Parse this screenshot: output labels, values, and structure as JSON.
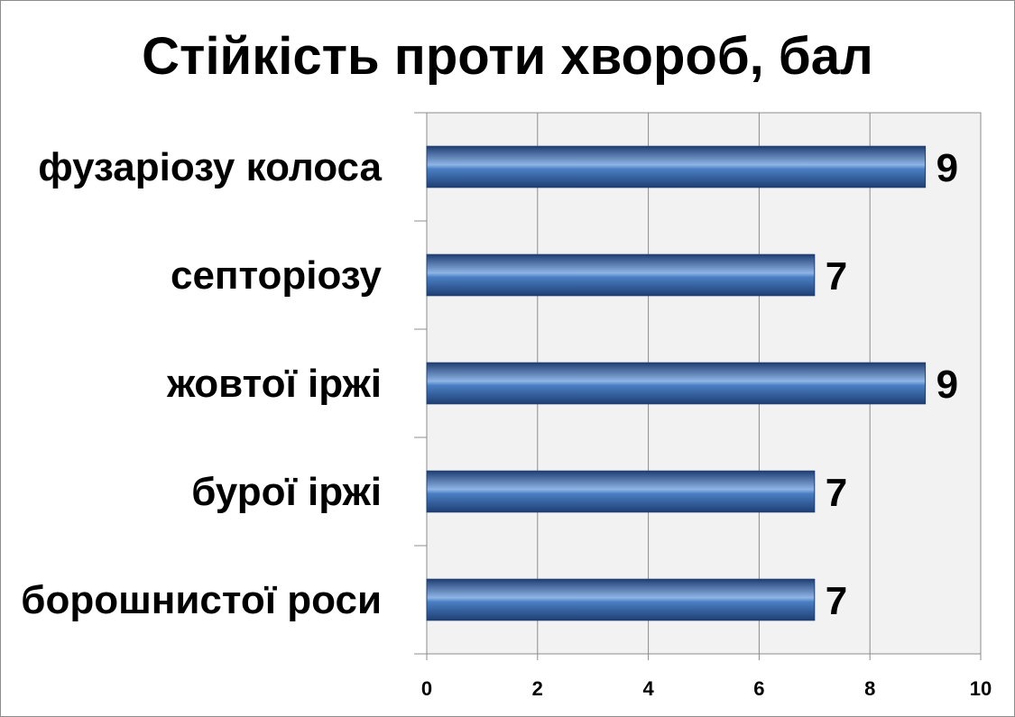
{
  "chart_data": {
    "type": "bar",
    "orientation": "horizontal",
    "title": "Стійкість проти хвороб, бал",
    "categories": [
      "фузаріозу колоса",
      "септоріозу",
      "жовтої іржі",
      "бурої іржі",
      "борошнистої роси"
    ],
    "values": [
      9,
      7,
      9,
      7,
      7
    ],
    "value_labels": [
      "9",
      "7",
      "9",
      "7",
      "7"
    ],
    "xlim": [
      0,
      10
    ],
    "x_ticks": [
      0,
      2,
      4,
      6,
      8,
      10
    ],
    "x_tick_labels": [
      "0",
      "2",
      "4",
      "6",
      "8",
      "10"
    ],
    "grid": true,
    "legend": "none",
    "colors": {
      "bar_dark": "#1f3f73",
      "bar_mid": "#4a7fc4",
      "bar_light": "#8fb4e6",
      "plot_background": "#f2f2f2",
      "gridline": "#8c8c8c"
    }
  }
}
